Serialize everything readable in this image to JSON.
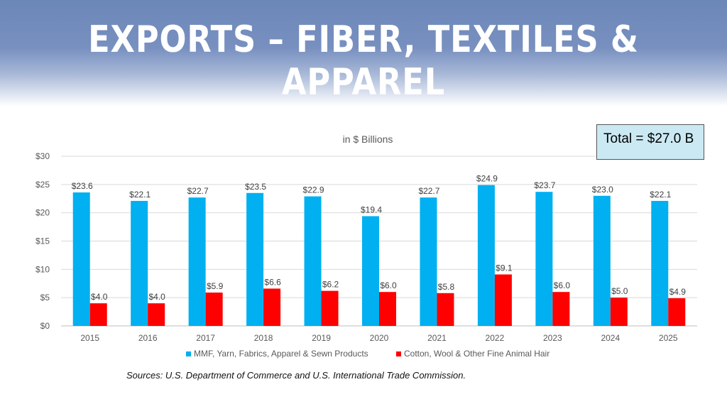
{
  "title": "EXPORTS – FIBER, TEXTILES & APPAREL",
  "total_label": "Total = $27.0 B",
  "source": "Sources: U.S. Department of Commerce and U.S. International Trade Commission.",
  "colors": {
    "mmf": "#00b0f0",
    "cotton": "#ff0000",
    "header": "#7890c0"
  },
  "chart_data": {
    "type": "bar",
    "subtitle": "in $ Billions",
    "categories": [
      "2015",
      "2016",
      "2017",
      "2018",
      "2019",
      "2020",
      "2021",
      "2022",
      "2023",
      "2024",
      "2025"
    ],
    "ylim": [
      0,
      30
    ],
    "yticks": [
      0,
      5,
      10,
      15,
      20,
      25,
      30
    ],
    "ytick_labels": [
      "$0",
      "$5",
      "$10",
      "$15",
      "$20",
      "$25",
      "$30"
    ],
    "legend_position": "bottom",
    "series": [
      {
        "name": "MMF, Yarn, Fabrics, Apparel & Sewn Products",
        "values": [
          23.6,
          22.1,
          22.7,
          23.5,
          22.9,
          19.4,
          22.7,
          24.9,
          23.7,
          23.0,
          22.1
        ],
        "labels": [
          "$23.6",
          "$22.1",
          "$22.7",
          "$23.5",
          "$22.9",
          "$19.4",
          "$22.7",
          "$24.9",
          "$23.7",
          "$23.0",
          "$22.1"
        ]
      },
      {
        "name": "Cotton, Wool & Other Fine Animal Hair",
        "values": [
          4.0,
          4.0,
          5.9,
          6.6,
          6.2,
          6.0,
          5.8,
          9.1,
          6.0,
          5.0,
          4.9
        ],
        "labels": [
          "$4.0",
          "$4.0",
          "$5.9",
          "$6.6",
          "$6.2",
          "$6.0",
          "$5.8",
          "$9.1",
          "$6.0",
          "$5.0",
          "$4.9"
        ]
      }
    ]
  }
}
